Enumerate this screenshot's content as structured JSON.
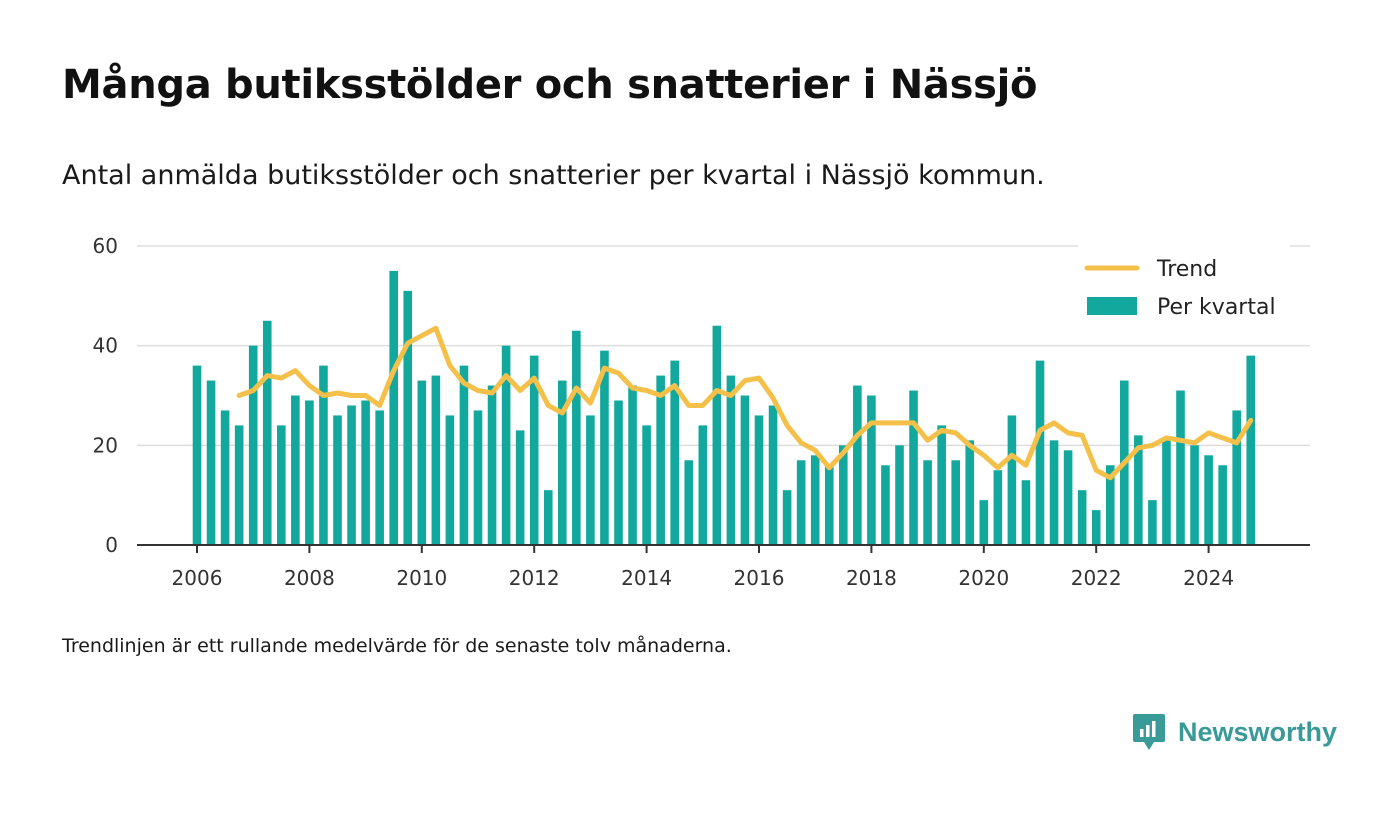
{
  "title": "Många butiksstölder och snatterier i Nässjö",
  "subtitle": "Antal anmälda butiksstölder och snatterier per kvartal i Nässjö kommun.",
  "footnote": "Trendlinjen är ett rullande medelvärde för de senaste tolv månaderna.",
  "brand": {
    "name": "Newsworthy",
    "icon": "newsworthy-logo-icon",
    "color": "#3a9a97"
  },
  "colors": {
    "bars": "#12a89d",
    "trend": "#f5c04a",
    "grid": "#dddddd",
    "axis": "#333333"
  },
  "chart_data": {
    "type": "bar",
    "x_start_year": 2006,
    "x_ticks": [
      "2006",
      "2008",
      "2010",
      "2012",
      "2014",
      "2016",
      "2018",
      "2020",
      "2022",
      "2024"
    ],
    "y_ticks": [
      "0",
      "20",
      "40",
      "60"
    ],
    "ylim": [
      0,
      60
    ],
    "grid": true,
    "legend_position": "top-right",
    "series": [
      {
        "name": "Per kvartal",
        "type": "bar",
        "values": [
          36,
          33,
          27,
          24,
          40,
          45,
          24,
          30,
          29,
          36,
          26,
          28,
          29,
          27,
          55,
          51,
          33,
          34,
          26,
          36,
          27,
          32,
          40,
          23,
          38,
          11,
          33,
          43,
          26,
          39,
          29,
          32,
          24,
          34,
          37,
          17,
          24,
          44,
          34,
          30,
          26,
          28,
          11,
          17,
          18,
          16,
          20,
          32,
          30,
          16,
          20,
          31,
          17,
          24,
          17,
          21,
          9,
          15,
          26,
          13,
          37,
          21,
          19,
          11,
          7,
          16,
          33,
          22,
          9,
          21,
          31,
          20,
          18,
          16,
          27,
          38
        ]
      },
      {
        "name": "Trend",
        "type": "line",
        "start_index": 3,
        "values": [
          30,
          31,
          34,
          33.5,
          35,
          32,
          30,
          30.5,
          30,
          30,
          28,
          35,
          40.5,
          42,
          43.5,
          36,
          32.5,
          31,
          30.5,
          34,
          31,
          33.5,
          28,
          26.5,
          31.5,
          28.5,
          35.5,
          34.5,
          31.5,
          31,
          30,
          32,
          28,
          28,
          31,
          30,
          33,
          33.5,
          29.5,
          24,
          20.5,
          19,
          15.5,
          18.5,
          22,
          24.5,
          24.5,
          24.5,
          24.5,
          21,
          23,
          22.5,
          20,
          18,
          15.5,
          18,
          16,
          23,
          24.5,
          22.5,
          22,
          15,
          13.5,
          16.5,
          19.5,
          20,
          21.5,
          21,
          20.5,
          22.5,
          21.5,
          20.5,
          25
        ]
      }
    ]
  }
}
